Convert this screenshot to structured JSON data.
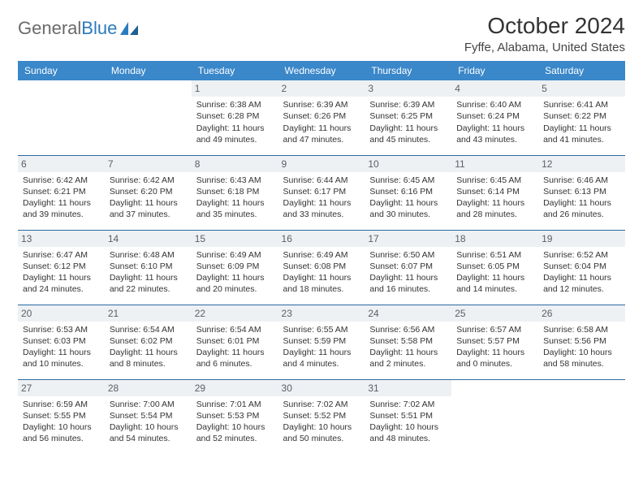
{
  "logo": {
    "text_gray": "General",
    "text_blue": "Blue"
  },
  "header": {
    "month_title": "October 2024",
    "location": "Fyffe, Alabama, United States"
  },
  "style": {
    "header_bg": "#3a87c9",
    "header_text": "#ffffff",
    "daynum_bg": "#eef1f3",
    "daynum_color": "#5a6068",
    "row_border": "#2b6aa0",
    "body_text": "#333333",
    "page_bg": "#ffffff",
    "cell_fontsize": 10.5,
    "header_fontsize": 12,
    "title_fontsize": 28,
    "location_fontsize": 15
  },
  "calendar": {
    "type": "table",
    "days": [
      "Sunday",
      "Monday",
      "Tuesday",
      "Wednesday",
      "Thursday",
      "Friday",
      "Saturday"
    ],
    "weeks": [
      [
        null,
        null,
        {
          "num": "1",
          "sunrise": "Sunrise: 6:38 AM",
          "sunset": "Sunset: 6:28 PM",
          "day1": "Daylight: 11 hours",
          "day2": "and 49 minutes."
        },
        {
          "num": "2",
          "sunrise": "Sunrise: 6:39 AM",
          "sunset": "Sunset: 6:26 PM",
          "day1": "Daylight: 11 hours",
          "day2": "and 47 minutes."
        },
        {
          "num": "3",
          "sunrise": "Sunrise: 6:39 AM",
          "sunset": "Sunset: 6:25 PM",
          "day1": "Daylight: 11 hours",
          "day2": "and 45 minutes."
        },
        {
          "num": "4",
          "sunrise": "Sunrise: 6:40 AM",
          "sunset": "Sunset: 6:24 PM",
          "day1": "Daylight: 11 hours",
          "day2": "and 43 minutes."
        },
        {
          "num": "5",
          "sunrise": "Sunrise: 6:41 AM",
          "sunset": "Sunset: 6:22 PM",
          "day1": "Daylight: 11 hours",
          "day2": "and 41 minutes."
        }
      ],
      [
        {
          "num": "6",
          "sunrise": "Sunrise: 6:42 AM",
          "sunset": "Sunset: 6:21 PM",
          "day1": "Daylight: 11 hours",
          "day2": "and 39 minutes."
        },
        {
          "num": "7",
          "sunrise": "Sunrise: 6:42 AM",
          "sunset": "Sunset: 6:20 PM",
          "day1": "Daylight: 11 hours",
          "day2": "and 37 minutes."
        },
        {
          "num": "8",
          "sunrise": "Sunrise: 6:43 AM",
          "sunset": "Sunset: 6:18 PM",
          "day1": "Daylight: 11 hours",
          "day2": "and 35 minutes."
        },
        {
          "num": "9",
          "sunrise": "Sunrise: 6:44 AM",
          "sunset": "Sunset: 6:17 PM",
          "day1": "Daylight: 11 hours",
          "day2": "and 33 minutes."
        },
        {
          "num": "10",
          "sunrise": "Sunrise: 6:45 AM",
          "sunset": "Sunset: 6:16 PM",
          "day1": "Daylight: 11 hours",
          "day2": "and 30 minutes."
        },
        {
          "num": "11",
          "sunrise": "Sunrise: 6:45 AM",
          "sunset": "Sunset: 6:14 PM",
          "day1": "Daylight: 11 hours",
          "day2": "and 28 minutes."
        },
        {
          "num": "12",
          "sunrise": "Sunrise: 6:46 AM",
          "sunset": "Sunset: 6:13 PM",
          "day1": "Daylight: 11 hours",
          "day2": "and 26 minutes."
        }
      ],
      [
        {
          "num": "13",
          "sunrise": "Sunrise: 6:47 AM",
          "sunset": "Sunset: 6:12 PM",
          "day1": "Daylight: 11 hours",
          "day2": "and 24 minutes."
        },
        {
          "num": "14",
          "sunrise": "Sunrise: 6:48 AM",
          "sunset": "Sunset: 6:10 PM",
          "day1": "Daylight: 11 hours",
          "day2": "and 22 minutes."
        },
        {
          "num": "15",
          "sunrise": "Sunrise: 6:49 AM",
          "sunset": "Sunset: 6:09 PM",
          "day1": "Daylight: 11 hours",
          "day2": "and 20 minutes."
        },
        {
          "num": "16",
          "sunrise": "Sunrise: 6:49 AM",
          "sunset": "Sunset: 6:08 PM",
          "day1": "Daylight: 11 hours",
          "day2": "and 18 minutes."
        },
        {
          "num": "17",
          "sunrise": "Sunrise: 6:50 AM",
          "sunset": "Sunset: 6:07 PM",
          "day1": "Daylight: 11 hours",
          "day2": "and 16 minutes."
        },
        {
          "num": "18",
          "sunrise": "Sunrise: 6:51 AM",
          "sunset": "Sunset: 6:05 PM",
          "day1": "Daylight: 11 hours",
          "day2": "and 14 minutes."
        },
        {
          "num": "19",
          "sunrise": "Sunrise: 6:52 AM",
          "sunset": "Sunset: 6:04 PM",
          "day1": "Daylight: 11 hours",
          "day2": "and 12 minutes."
        }
      ],
      [
        {
          "num": "20",
          "sunrise": "Sunrise: 6:53 AM",
          "sunset": "Sunset: 6:03 PM",
          "day1": "Daylight: 11 hours",
          "day2": "and 10 minutes."
        },
        {
          "num": "21",
          "sunrise": "Sunrise: 6:54 AM",
          "sunset": "Sunset: 6:02 PM",
          "day1": "Daylight: 11 hours",
          "day2": "and 8 minutes."
        },
        {
          "num": "22",
          "sunrise": "Sunrise: 6:54 AM",
          "sunset": "Sunset: 6:01 PM",
          "day1": "Daylight: 11 hours",
          "day2": "and 6 minutes."
        },
        {
          "num": "23",
          "sunrise": "Sunrise: 6:55 AM",
          "sunset": "Sunset: 5:59 PM",
          "day1": "Daylight: 11 hours",
          "day2": "and 4 minutes."
        },
        {
          "num": "24",
          "sunrise": "Sunrise: 6:56 AM",
          "sunset": "Sunset: 5:58 PM",
          "day1": "Daylight: 11 hours",
          "day2": "and 2 minutes."
        },
        {
          "num": "25",
          "sunrise": "Sunrise: 6:57 AM",
          "sunset": "Sunset: 5:57 PM",
          "day1": "Daylight: 11 hours",
          "day2": "and 0 minutes."
        },
        {
          "num": "26",
          "sunrise": "Sunrise: 6:58 AM",
          "sunset": "Sunset: 5:56 PM",
          "day1": "Daylight: 10 hours",
          "day2": "and 58 minutes."
        }
      ],
      [
        {
          "num": "27",
          "sunrise": "Sunrise: 6:59 AM",
          "sunset": "Sunset: 5:55 PM",
          "day1": "Daylight: 10 hours",
          "day2": "and 56 minutes."
        },
        {
          "num": "28",
          "sunrise": "Sunrise: 7:00 AM",
          "sunset": "Sunset: 5:54 PM",
          "day1": "Daylight: 10 hours",
          "day2": "and 54 minutes."
        },
        {
          "num": "29",
          "sunrise": "Sunrise: 7:01 AM",
          "sunset": "Sunset: 5:53 PM",
          "day1": "Daylight: 10 hours",
          "day2": "and 52 minutes."
        },
        {
          "num": "30",
          "sunrise": "Sunrise: 7:02 AM",
          "sunset": "Sunset: 5:52 PM",
          "day1": "Daylight: 10 hours",
          "day2": "and 50 minutes."
        },
        {
          "num": "31",
          "sunrise": "Sunrise: 7:02 AM",
          "sunset": "Sunset: 5:51 PM",
          "day1": "Daylight: 10 hours",
          "day2": "and 48 minutes."
        },
        null,
        null
      ]
    ]
  }
}
